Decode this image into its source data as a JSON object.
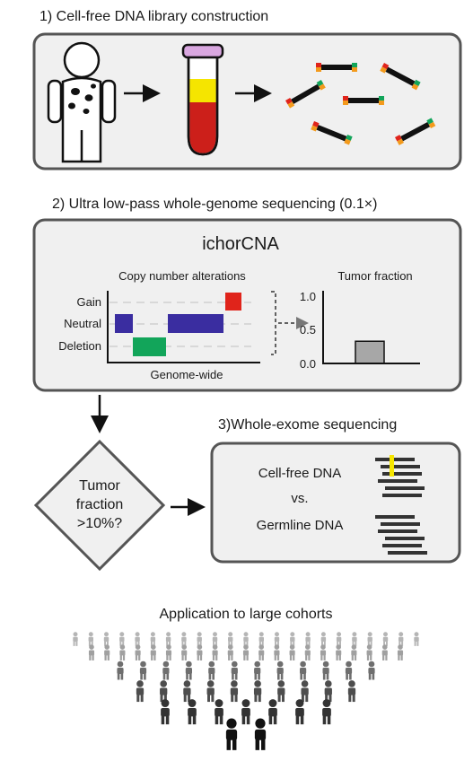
{
  "step1": {
    "title": "1) Cell-free DNA library construction"
  },
  "step2": {
    "title": "2) Ultra low-pass whole-genome sequencing (0.1×)",
    "tool_name": "ichorCNA",
    "cna": {
      "title": "Copy number alterations",
      "row_labels": [
        "Gain",
        "Neutral",
        "Deletion"
      ],
      "x_label": "Genome-wide"
    },
    "tumor_fraction": {
      "title": "Tumor fraction",
      "y_ticks": [
        "1.0",
        "0.5",
        "0.0"
      ],
      "bar_value": 0.33
    }
  },
  "decision": {
    "line1": "Tumor",
    "line2": "fraction",
    "line3": ">10%?"
  },
  "step3": {
    "title": "3)Whole-exome sequencing",
    "cfdna_label": "Cell-free DNA",
    "vs_label": "vs.",
    "germline_label": "Germline DNA"
  },
  "footer": {
    "title": "Application to large cohorts"
  },
  "colors": {
    "gain": "#e0241b",
    "neutral": "#3a2da0",
    "deletion": "#12a55a",
    "tube_cap": "#d9a7e0",
    "yellow": "#f5e500",
    "red": "#cc1f1a",
    "panel_bg": "#f0f0f0",
    "panel_border": "#555555",
    "bar_grey": "#a7a7a7"
  }
}
